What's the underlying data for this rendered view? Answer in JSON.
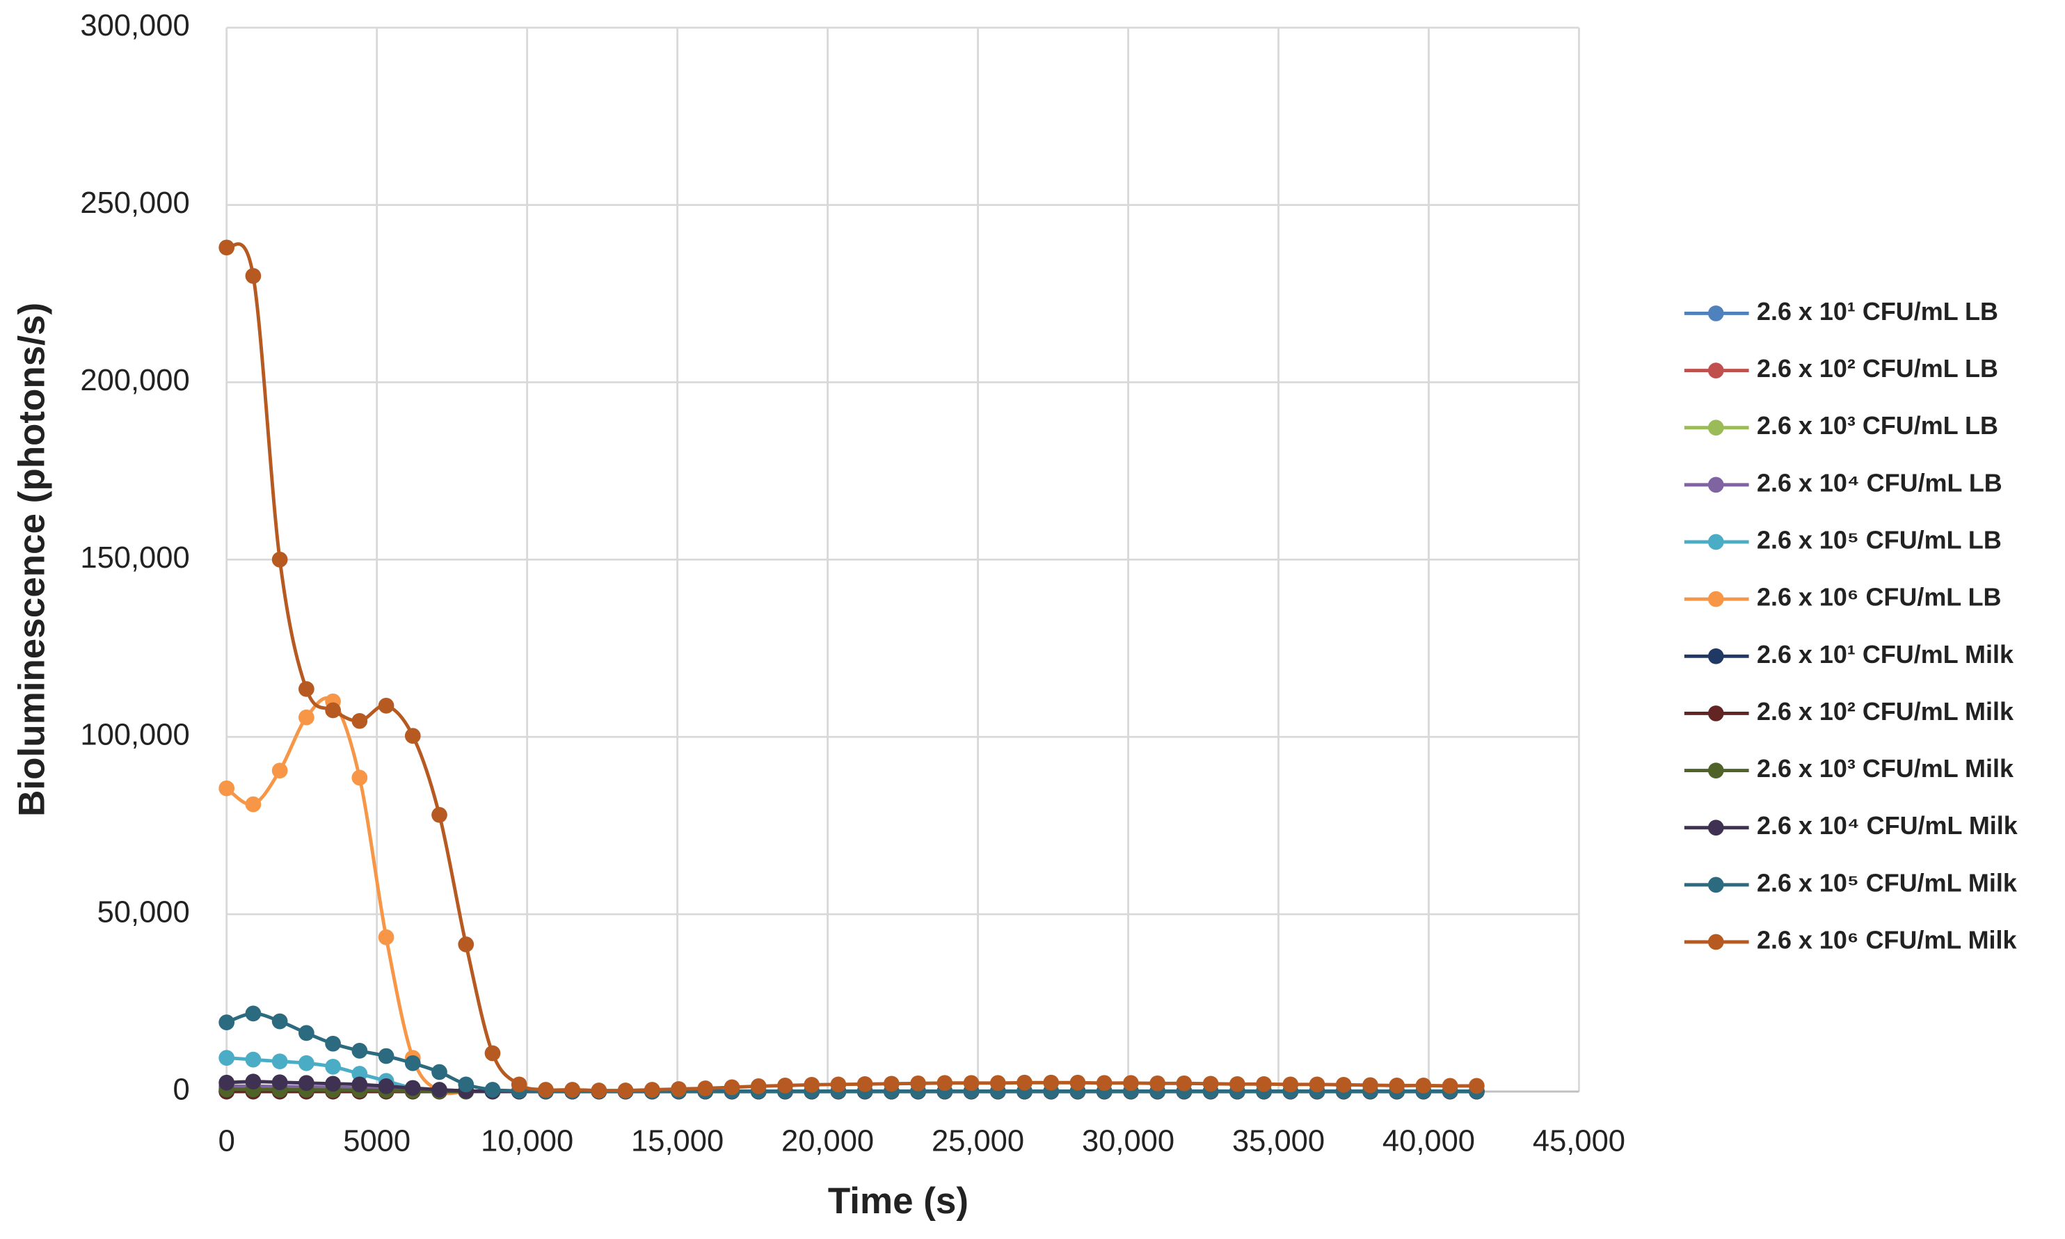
{
  "chart_data": {
    "type": "line",
    "y_label": "Bioluminescence (photons/s)",
    "x_label": "Time (s)",
    "xlim": [
      0,
      45000
    ],
    "ylim": [
      0,
      300000
    ],
    "grid": true,
    "legend": "right",
    "xticks": [
      0,
      5000,
      {
        "value": 10000,
        "label": "10,000"
      },
      {
        "value": 15000,
        "label": "15,000"
      },
      {
        "value": 20000,
        "label": "20,000"
      },
      {
        "value": 25000,
        "label": "25,000"
      },
      {
        "value": 30000,
        "label": "30,000"
      },
      {
        "value": 35000,
        "label": "35,000"
      },
      {
        "value": 40000,
        "label": "40,000"
      },
      {
        "value": 45000,
        "label": "45,000"
      }
    ],
    "yticks": [
      0,
      {
        "value": 50000,
        "label": "50,000"
      },
      {
        "value": 100000,
        "label": "100,000"
      },
      {
        "value": 150000,
        "label": "150,000"
      },
      {
        "value": 200000,
        "label": "200,000"
      },
      {
        "value": 250000,
        "label": "250,000"
      },
      {
        "value": 300000,
        "label": "300,000"
      }
    ],
    "x": [
      0,
      885,
      1770,
      2655,
      3540,
      4425,
      5310,
      6195,
      7080,
      7965,
      8850,
      9735,
      10620,
      11505,
      12390,
      13275,
      14160,
      15045,
      15930,
      16815,
      17700,
      18585,
      19470,
      20355,
      21240,
      22125,
      23010,
      23895,
      24780,
      25665,
      26550,
      27435,
      28320,
      29205,
      30090,
      30975,
      31860,
      32745,
      33630,
      34515,
      35400,
      36285,
      37170,
      38055,
      38940,
      39825,
      40710,
      41595
    ],
    "series": [
      {
        "name": "2.6 x 10¹ CFU/mL LB",
        "color": "#4f81bd",
        "values": [
          0,
          0,
          0,
          0,
          0,
          0,
          0,
          0,
          0,
          0,
          0,
          0,
          0,
          0,
          0,
          0,
          0,
          0,
          0,
          0,
          0,
          0,
          0,
          0,
          0,
          0,
          0,
          0,
          0,
          0,
          0,
          0,
          0,
          0,
          0,
          0,
          0,
          0,
          0,
          0,
          0,
          0,
          0,
          0,
          0,
          0,
          0,
          0
        ]
      },
      {
        "name": "2.6 x 10² CFU/mL LB",
        "color": "#c0504d",
        "values": [
          0,
          0,
          0,
          0,
          0,
          0,
          0,
          0,
          0,
          0,
          0,
          0,
          0,
          0,
          0,
          0,
          0,
          0,
          0,
          0,
          0,
          0,
          0,
          0,
          0,
          0,
          0,
          0,
          0,
          0,
          0,
          0,
          0,
          0,
          0,
          0,
          0,
          0,
          0,
          0,
          0,
          0,
          0,
          0,
          0,
          0,
          0,
          0
        ]
      },
      {
        "name": "2.6 x 10³ CFU/mL LB",
        "color": "#9bbb59",
        "values": [
          300,
          300,
          300,
          300,
          200,
          200,
          100,
          100,
          0,
          0,
          0,
          0,
          0,
          0,
          0,
          0,
          0,
          0,
          0,
          0,
          0,
          0,
          0,
          0,
          0,
          0,
          0,
          0,
          0,
          0,
          0,
          0,
          0,
          0,
          0,
          0,
          0,
          0,
          0,
          0,
          0,
          0,
          0,
          0,
          0,
          0,
          0,
          0
        ]
      },
      {
        "name": "2.6 x 10⁴ CFU/mL LB",
        "color": "#8064a2",
        "values": [
          1500,
          1500,
          1400,
          1300,
          1200,
          1000,
          800,
          500,
          300,
          100,
          0,
          0,
          0,
          0,
          0,
          0,
          0,
          0,
          0,
          0,
          0,
          0,
          0,
          0,
          0,
          0,
          0,
          0,
          0,
          0,
          0,
          0,
          0,
          0,
          0,
          0,
          0,
          0,
          0,
          0,
          0,
          0,
          0,
          0,
          0,
          0,
          0,
          0
        ]
      },
      {
        "name": "2.6 x 10⁵ CFU/mL LB",
        "color": "#4bacc6",
        "values": [
          9500,
          9000,
          8500,
          8000,
          7000,
          5000,
          3000,
          1000,
          300,
          100,
          0,
          0,
          0,
          0,
          0,
          0,
          0,
          0,
          0,
          0,
          0,
          0,
          0,
          0,
          0,
          0,
          0,
          0,
          0,
          0,
          0,
          0,
          0,
          0,
          0,
          0,
          0,
          0,
          0,
          0,
          0,
          0,
          0,
          0,
          0,
          0,
          0,
          0
        ]
      },
      {
        "name": "2.6 x 10⁶ CFU/mL LB",
        "color": "#f79646",
        "values": [
          85500,
          81000,
          90500,
          105500,
          110000,
          88500,
          43500,
          9500,
          200,
          0,
          0,
          0,
          0,
          0,
          0,
          0,
          0,
          0,
          0,
          0,
          0,
          0,
          0,
          0,
          0,
          0,
          0,
          0,
          0,
          0,
          0,
          0,
          0,
          0,
          0,
          0,
          0,
          0,
          0,
          0,
          0,
          0,
          0,
          0,
          0,
          0,
          0,
          0
        ]
      },
      {
        "name": "2.6 x 10¹ CFU/mL Milk",
        "color": "#1f3864",
        "values": [
          0,
          0,
          0,
          0,
          0,
          0,
          0,
          0,
          0,
          0,
          0,
          0,
          0,
          0,
          0,
          0,
          0,
          0,
          0,
          0,
          0,
          0,
          0,
          0,
          0,
          0,
          0,
          0,
          0,
          0,
          0,
          0,
          0,
          0,
          0,
          0,
          0,
          0,
          0,
          0,
          0,
          0,
          0,
          0,
          0,
          0,
          0,
          0
        ]
      },
      {
        "name": "2.6 x 10² CFU/mL Milk",
        "color": "#632523",
        "values": [
          0,
          0,
          0,
          0,
          0,
          0,
          0,
          0,
          0,
          0,
          0,
          0,
          0,
          0,
          0,
          0,
          0,
          0,
          0,
          0,
          0,
          0,
          0,
          0,
          0,
          0,
          0,
          0,
          0,
          0,
          0,
          0,
          0,
          0,
          0,
          0,
          0,
          0,
          0,
          0,
          0,
          0,
          0,
          0,
          0,
          0,
          0,
          0
        ]
      },
      {
        "name": "2.6 x 10³ CFU/mL Milk",
        "color": "#4f6228",
        "values": [
          600,
          600,
          500,
          500,
          400,
          400,
          300,
          200,
          100,
          0,
          0,
          0,
          0,
          0,
          0,
          0,
          0,
          0,
          0,
          0,
          0,
          0,
          0,
          0,
          0,
          0,
          0,
          0,
          0,
          0,
          0,
          0,
          0,
          0,
          0,
          0,
          0,
          0,
          0,
          0,
          0,
          0,
          0,
          0,
          0,
          0,
          0,
          0
        ]
      },
      {
        "name": "2.6 x 10⁴ CFU/mL Milk",
        "color": "#3f3151",
        "values": [
          2500,
          2800,
          2600,
          2400,
          2200,
          2000,
          1500,
          1000,
          500,
          200,
          0,
          0,
          0,
          0,
          0,
          0,
          0,
          0,
          0,
          0,
          0,
          0,
          0,
          0,
          0,
          0,
          0,
          0,
          0,
          0,
          0,
          0,
          0,
          0,
          0,
          0,
          0,
          0,
          0,
          0,
          0,
          0,
          0,
          0,
          0,
          0,
          0,
          0
        ]
      },
      {
        "name": "2.6 x 10⁵ CFU/mL Milk",
        "color": "#2c6b7f",
        "values": [
          19500,
          22000,
          19800,
          16500,
          13500,
          11500,
          10000,
          8000,
          5500,
          2000,
          500,
          200,
          100,
          100,
          100,
          100,
          100,
          100,
          100,
          100,
          100,
          100,
          100,
          100,
          100,
          100,
          100,
          100,
          100,
          100,
          100,
          100,
          100,
          100,
          100,
          100,
          100,
          100,
          100,
          100,
          100,
          100,
          100,
          100,
          100,
          100,
          100,
          100
        ]
      },
      {
        "name": "2.6 x 10⁶ CFU/mL Milk",
        "color": "#b65a22",
        "values": [
          238000,
          230000,
          150000,
          113500,
          107500,
          104500,
          108800,
          100300,
          78000,
          41500,
          10800,
          2000,
          500,
          500,
          300,
          300,
          500,
          700,
          900,
          1200,
          1500,
          1700,
          1900,
          2000,
          2100,
          2200,
          2300,
          2400,
          2400,
          2400,
          2500,
          2500,
          2500,
          2400,
          2400,
          2300,
          2300,
          2200,
          2100,
          2100,
          2000,
          2000,
          1900,
          1800,
          1700,
          1700,
          1600,
          1600
        ]
      }
    ]
  }
}
